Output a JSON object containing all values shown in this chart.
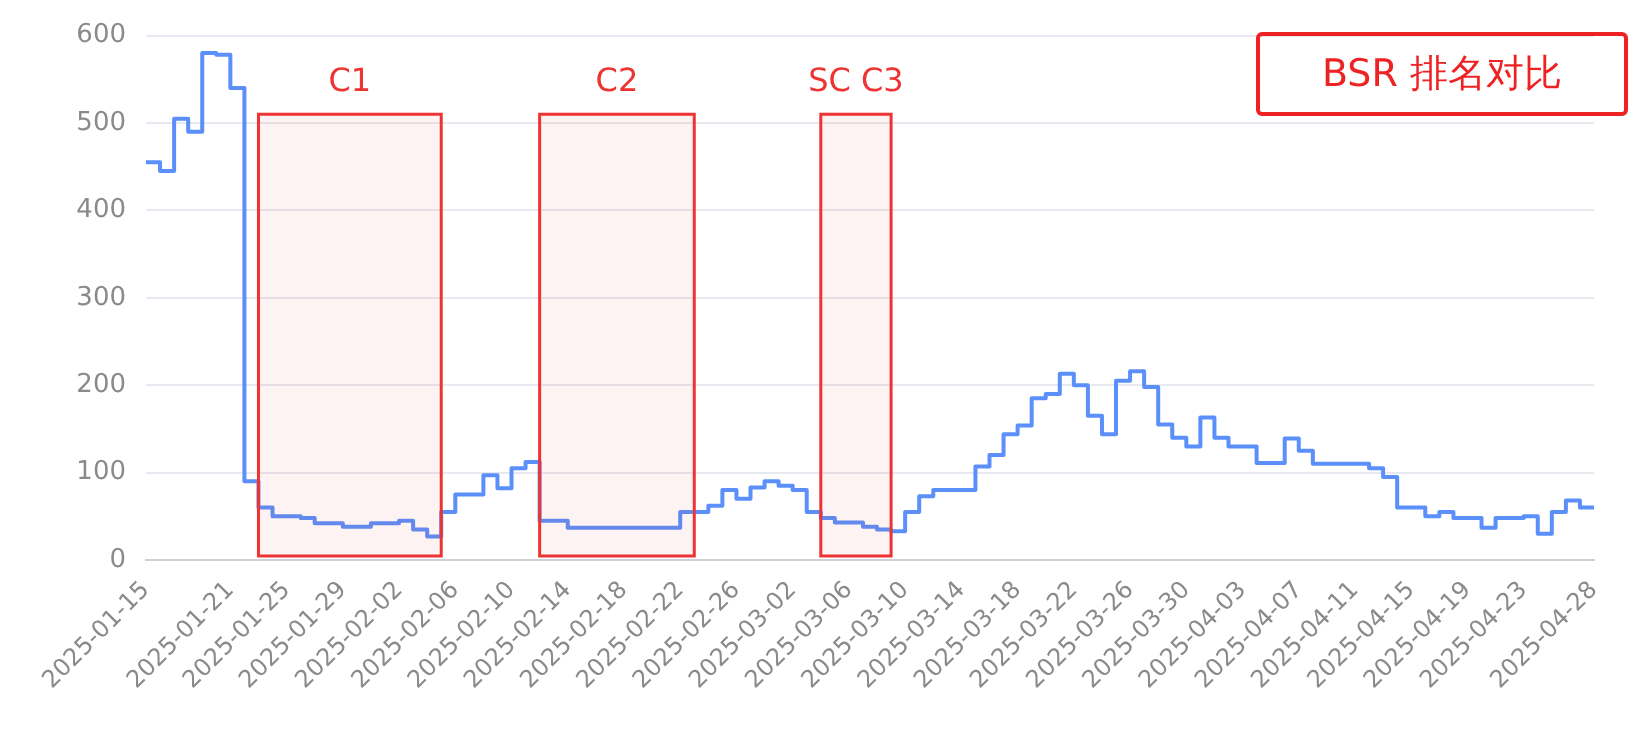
{
  "chart_data": {
    "type": "step",
    "title": "BSR 排名对比",
    "x": [
      "2025-01-15",
      "2025-01-16",
      "2025-01-17",
      "2025-01-18",
      "2025-01-19",
      "2025-01-20",
      "2025-01-21",
      "2025-01-22",
      "2025-01-23",
      "2025-01-24",
      "2025-01-25",
      "2025-01-26",
      "2025-01-27",
      "2025-01-28",
      "2025-01-29",
      "2025-01-30",
      "2025-01-31",
      "2025-02-01",
      "2025-02-02",
      "2025-02-03",
      "2025-02-04",
      "2025-02-05",
      "2025-02-06",
      "2025-02-07",
      "2025-02-08",
      "2025-02-09",
      "2025-02-10",
      "2025-02-11",
      "2025-02-12",
      "2025-02-13",
      "2025-02-14",
      "2025-02-15",
      "2025-02-16",
      "2025-02-17",
      "2025-02-18",
      "2025-02-19",
      "2025-02-20",
      "2025-02-21",
      "2025-02-22",
      "2025-02-23",
      "2025-02-24",
      "2025-02-25",
      "2025-02-26",
      "2025-02-27",
      "2025-02-28",
      "2025-03-01",
      "2025-03-02",
      "2025-03-03",
      "2025-03-04",
      "2025-03-05",
      "2025-03-06",
      "2025-03-07",
      "2025-03-08",
      "2025-03-09",
      "2025-03-10",
      "2025-03-11",
      "2025-03-12",
      "2025-03-13",
      "2025-03-14",
      "2025-03-15",
      "2025-03-16",
      "2025-03-17",
      "2025-03-18",
      "2025-03-19",
      "2025-03-20",
      "2025-03-21",
      "2025-03-22",
      "2025-03-23",
      "2025-03-24",
      "2025-03-25",
      "2025-03-26",
      "2025-03-27",
      "2025-03-28",
      "2025-03-29",
      "2025-03-30",
      "2025-03-31",
      "2025-04-01",
      "2025-04-02",
      "2025-04-03",
      "2025-04-04",
      "2025-04-05",
      "2025-04-06",
      "2025-04-07",
      "2025-04-08",
      "2025-04-09",
      "2025-04-10",
      "2025-04-11",
      "2025-04-12",
      "2025-04-13",
      "2025-04-14",
      "2025-04-15",
      "2025-04-16",
      "2025-04-17",
      "2025-04-18",
      "2025-04-19",
      "2025-04-20",
      "2025-04-21",
      "2025-04-22",
      "2025-04-23",
      "2025-04-24",
      "2025-04-25",
      "2025-04-26",
      "2025-04-27",
      "2025-04-28"
    ],
    "series": [
      {
        "color": "#5b8ff9",
        "values": [
          455,
          445,
          505,
          490,
          580,
          578,
          540,
          90,
          60,
          50,
          50,
          48,
          42,
          42,
          38,
          38,
          42,
          42,
          45,
          35,
          27,
          55,
          75,
          75,
          97,
          82,
          105,
          112,
          45,
          45,
          37,
          37,
          37,
          37,
          37,
          37,
          37,
          37,
          55,
          55,
          62,
          80,
          70,
          83,
          90,
          85,
          80,
          55,
          48,
          43,
          43,
          38,
          35,
          33,
          55,
          73,
          80,
          80,
          80,
          107,
          120,
          144,
          154,
          185,
          190,
          213,
          200,
          165,
          144,
          205,
          216,
          198,
          155,
          140,
          130,
          163,
          140,
          130,
          130,
          111,
          111,
          139,
          125,
          110,
          110,
          110,
          110,
          105,
          95,
          60,
          60,
          50,
          55,
          48,
          48,
          37,
          48,
          48,
          50,
          30,
          55,
          68,
          60,
          60
        ]
      }
    ],
    "xlim": [
      "2025-01-15",
      "2025-04-28"
    ],
    "xticks": [
      "2025-01-15",
      "2025-01-21",
      "2025-01-25",
      "2025-01-29",
      "2025-02-02",
      "2025-02-06",
      "2025-02-10",
      "2025-02-14",
      "2025-02-18",
      "2025-02-22",
      "2025-02-26",
      "2025-03-02",
      "2025-03-06",
      "2025-03-10",
      "2025-03-14",
      "2025-03-18",
      "2025-03-22",
      "2025-03-26",
      "2025-03-30",
      "2025-04-03",
      "2025-04-07",
      "2025-04-11",
      "2025-04-15",
      "2025-04-19",
      "2025-04-23",
      "2025-04-28"
    ],
    "ylim": [
      0,
      600
    ],
    "yticks": [
      0,
      100,
      200,
      300,
      400,
      500,
      600
    ],
    "grid": "y",
    "marker": "none",
    "legend": false,
    "bands": [
      {
        "axis": "x",
        "from": "2025-01-23",
        "to": "2025-02-05",
        "label": "C1",
        "color": "#ee3333"
      },
      {
        "axis": "x",
        "from": "2025-02-12",
        "to": "2025-02-23",
        "label": "C2",
        "color": "#ee3333"
      },
      {
        "axis": "x",
        "from": "2025-03-04",
        "to": "2025-03-09",
        "label": "SC C3",
        "color": "#ee3333"
      }
    ]
  }
}
